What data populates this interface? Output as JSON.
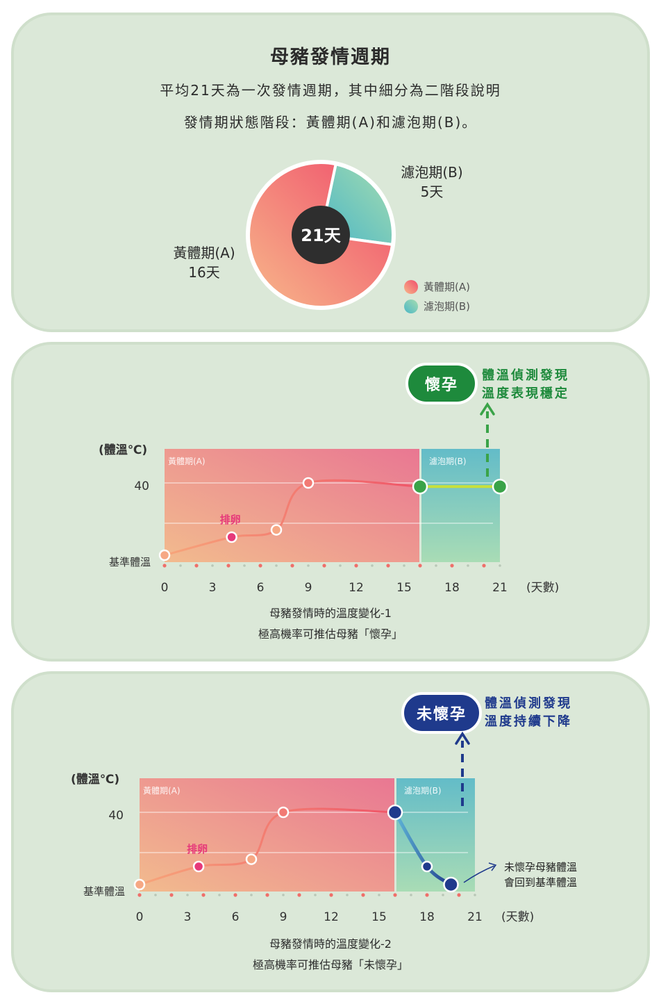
{
  "panel1": {
    "title": "母豬發情週期",
    "line1": "平均21天為一次發情週期，其中細分為二階段說明",
    "line2": "發情期狀態階段：黃體期(A)和濾泡期(B)。",
    "center_label": "21天",
    "slice_a_name": "黃體期(A)",
    "slice_a_value": "16天",
    "slice_b_name": "濾泡期(B)",
    "slice_b_value": "5天",
    "legend": [
      "黃體期(A)",
      "濾泡期(B)"
    ]
  },
  "panel2": {
    "badge": "懷孕",
    "note_line1": "體溫偵測發現",
    "note_line2": "溫度表現穩定",
    "ylabel": "(體溫℃)",
    "y40": "40",
    "ybase": "基準體溫",
    "region_a": "黃體期(A)",
    "region_b": "濾泡期(B)",
    "ovulation": "排卵",
    "xunit": "(天數)",
    "caption1": "母豬發情時的溫度變化-1",
    "caption2": "極高機率可推估母豬「懷孕」"
  },
  "panel3": {
    "badge": "未懷孕",
    "note_line1": "體溫偵測發現",
    "note_line2": "溫度持續下降",
    "ylabel": "(體溫℃)",
    "y40": "40",
    "ybase": "基準體溫",
    "region_a": "黃體期(A)",
    "region_b": "濾泡期(B)",
    "ovulation": "排卵",
    "xunit": "(天數)",
    "side_note1": "未懷孕母豬體溫",
    "side_note2": "會回到基準體溫",
    "caption1": "母豬發情時的溫度變化-2",
    "caption2": "極高機率可推估母豬「未懷孕」"
  },
  "colors": {
    "panel_bg": "#dbe8d8",
    "luteal": "#ee6b7e",
    "follicular": "#5bbfc4",
    "pregnant": "#1e8a3c",
    "not_pregnant": "#1f3a8c"
  },
  "chart_data": [
    {
      "type": "pie",
      "title": "母豬發情週期",
      "categories": [
        "黃體期(A)",
        "濾泡期(B)"
      ],
      "values": [
        16,
        5
      ],
      "center_label": "21天"
    },
    {
      "type": "line",
      "title": "母豬發情時的溫度變化-1",
      "xlabel": "(天數)",
      "ylabel": "(體溫℃)",
      "x_ticks": [
        0,
        3,
        6,
        9,
        12,
        15,
        18,
        21
      ],
      "y_ticks": [
        "基準體溫",
        "40"
      ],
      "regions": [
        {
          "name": "黃體期(A)",
          "from": 0,
          "to": 16
        },
        {
          "name": "濾泡期(B)",
          "from": 16,
          "to": 21
        }
      ],
      "series": [
        {
          "x": [
            0,
            4.2,
            7,
            9,
            16,
            21
          ],
          "y": [
            38.0,
            38.5,
            38.7,
            40.0,
            39.9,
            39.9
          ]
        }
      ],
      "annotations": [
        {
          "x": 4.2,
          "text": "排卵"
        }
      ],
      "outcome": "懷孕"
    },
    {
      "type": "line",
      "title": "母豬發情時的溫度變化-2",
      "xlabel": "(天數)",
      "ylabel": "(體溫℃)",
      "x_ticks": [
        0,
        3,
        6,
        9,
        12,
        15,
        18,
        21
      ],
      "y_ticks": [
        "基準體溫",
        "40"
      ],
      "regions": [
        {
          "name": "黃體期(A)",
          "from": 0,
          "to": 16
        },
        {
          "name": "濾泡期(B)",
          "from": 16,
          "to": 21
        }
      ],
      "series": [
        {
          "x": [
            0,
            3.7,
            7,
            9,
            16,
            18,
            19.5
          ],
          "y": [
            38.0,
            38.5,
            38.7,
            40.0,
            40.0,
            38.5,
            38.0
          ]
        }
      ],
      "annotations": [
        {
          "x": 3.7,
          "text": "排卵"
        }
      ],
      "outcome": "未懷孕"
    }
  ]
}
